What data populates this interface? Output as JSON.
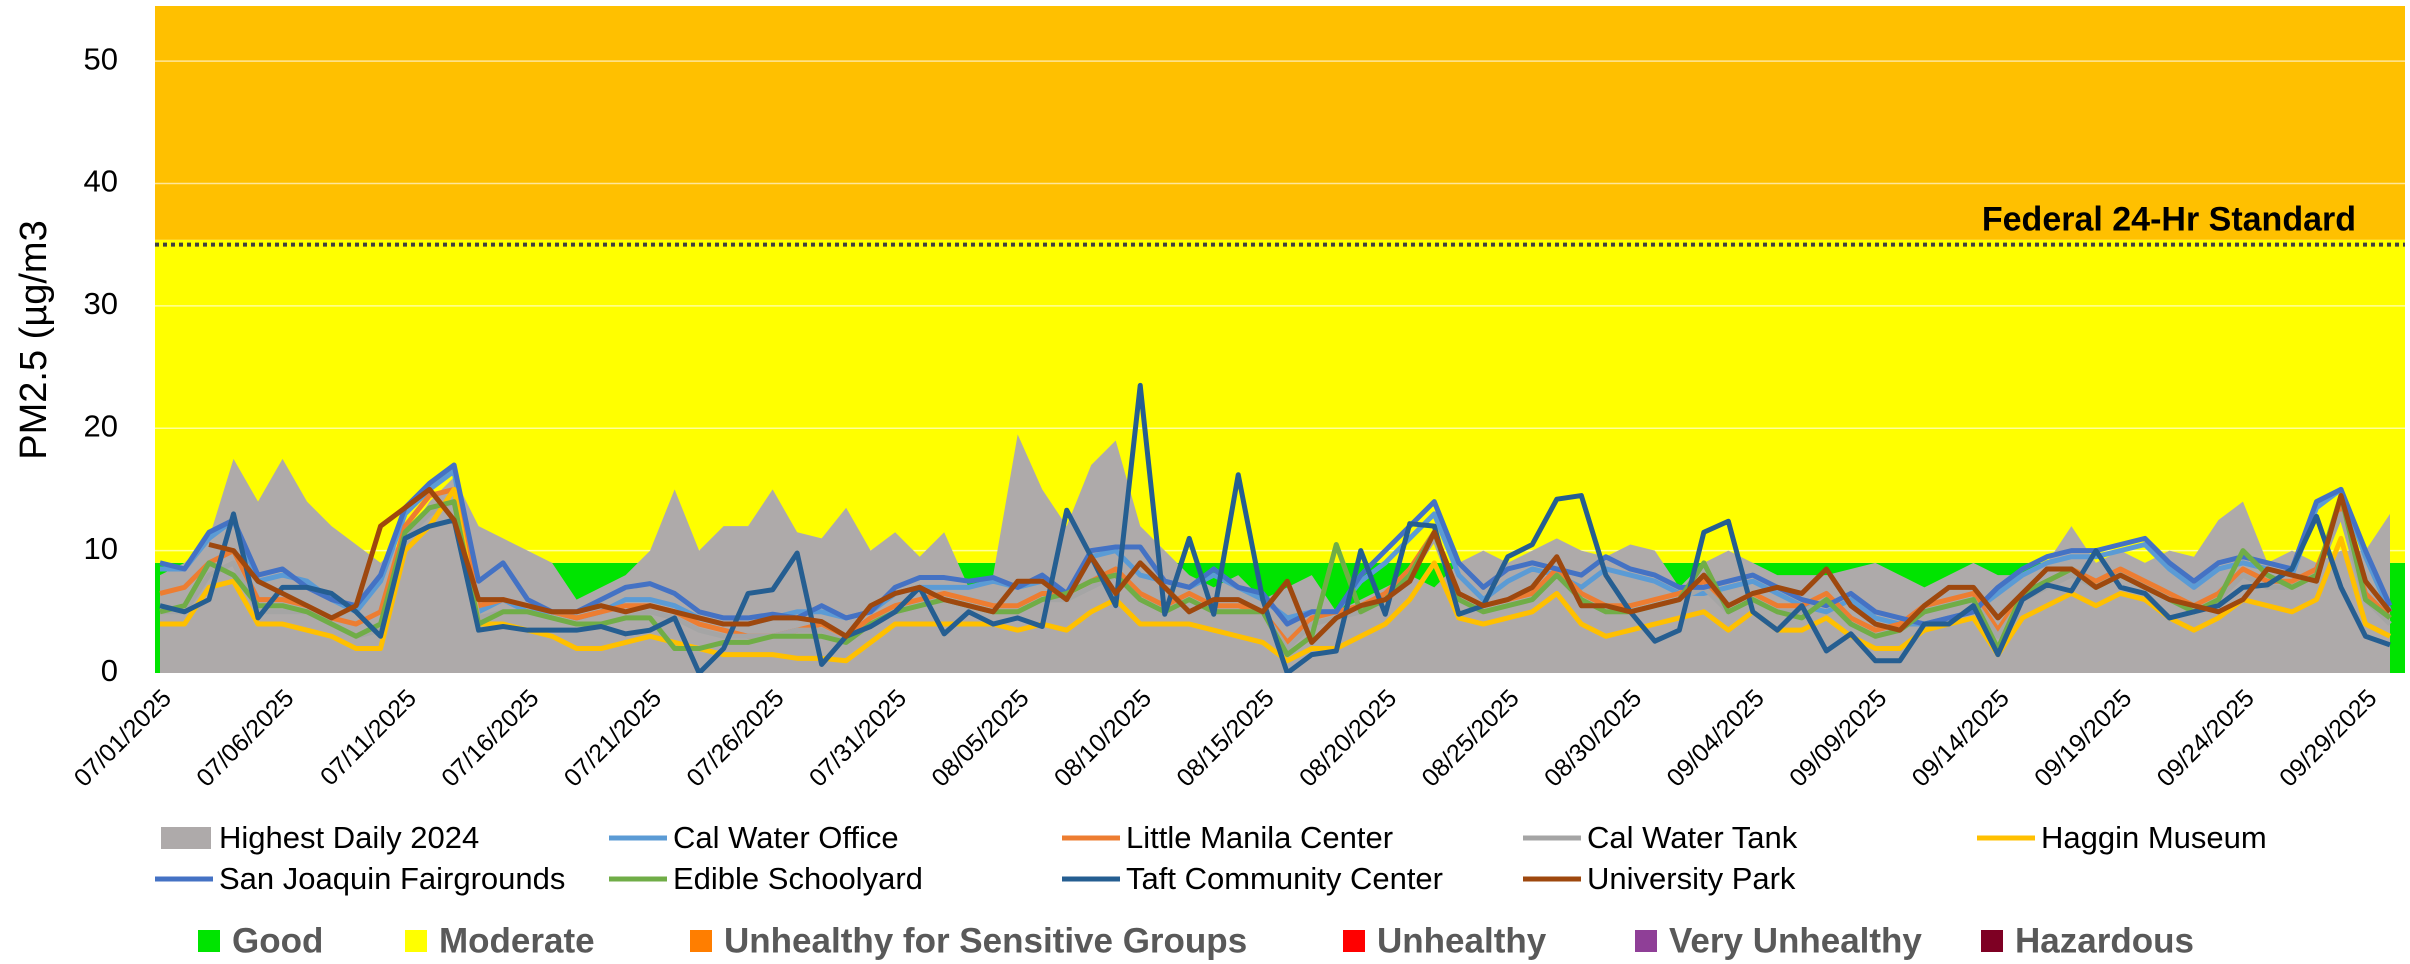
{
  "chart_data": {
    "type": "line",
    "ylabel": "PM2.5 (µg/m3",
    "ylim": [
      0,
      54.5
    ],
    "yticks": [
      0,
      10,
      20,
      30,
      40,
      50
    ],
    "grid": true,
    "standard": {
      "label": "Federal 24-Hr Standard",
      "value": 35
    },
    "aqi_categories": [
      {
        "name": "Good",
        "color": "#00e400",
        "range": [
          0,
          9
        ]
      },
      {
        "name": "Moderate",
        "color": "#ffff00",
        "range": [
          9,
          35.4
        ]
      },
      {
        "name": "Unhealthy for Sensitive Groups",
        "color": "#ff7e00",
        "fill": "#ffc000",
        "range": [
          35.4,
          55.4
        ]
      },
      {
        "name": "Unhealthy",
        "color": "#ff0000"
      },
      {
        "name": "Very Unhealthy",
        "color": "#8f3f97"
      },
      {
        "name": "Hazardous",
        "color": "#7e0023"
      }
    ],
    "categories": [
      "07/01/2025",
      null,
      null,
      null,
      null,
      "07/06/2025",
      null,
      null,
      null,
      null,
      "07/11/2025",
      null,
      null,
      null,
      null,
      "07/16/2025",
      null,
      null,
      null,
      null,
      "07/21/2025",
      null,
      null,
      null,
      null,
      "07/26/2025",
      null,
      null,
      null,
      null,
      "07/31/2025",
      null,
      null,
      null,
      null,
      "08/05/2025",
      null,
      null,
      null,
      null,
      "08/10/2025",
      null,
      null,
      null,
      null,
      "08/15/2025",
      null,
      null,
      null,
      null,
      "08/20/2025",
      null,
      null,
      null,
      null,
      "08/25/2025",
      null,
      null,
      null,
      null,
      "08/30/2025",
      null,
      null,
      null,
      null,
      "09/04/2025",
      null,
      null,
      null,
      null,
      "09/09/2025",
      null,
      null,
      null,
      null,
      "09/14/2025",
      null,
      null,
      null,
      null,
      "09/19/2025",
      null,
      null,
      null,
      null,
      "09/24/2025",
      null,
      null,
      null,
      null,
      "09/29/2025",
      null
    ],
    "series": [
      {
        "name": "Highest Daily 2024",
        "kind": "area",
        "color": "#aeaaaa",
        "values": [
          8,
          9,
          11,
          17.5,
          14,
          17.5,
          14,
          12,
          10.5,
          9,
          11,
          14,
          16,
          12,
          11,
          10,
          9,
          6,
          7,
          8,
          10,
          15,
          10,
          12,
          12,
          15,
          11.5,
          11,
          13.5,
          10,
          11.5,
          9.5,
          11.5,
          7,
          8,
          19.5,
          15,
          12,
          17,
          19,
          12,
          10,
          8,
          7,
          8,
          6,
          7,
          8,
          5,
          6,
          7,
          8,
          7,
          9,
          10,
          9,
          10,
          11,
          10,
          9.5,
          10.5,
          10,
          7,
          9,
          10,
          9,
          8,
          8,
          8,
          8.5,
          9,
          8,
          7,
          8,
          9,
          8,
          8,
          9,
          12,
          9,
          10,
          9,
          10,
          9.5,
          12.5,
          14,
          9,
          10,
          9,
          10,
          10,
          13
        ]
      },
      {
        "name": "Cal Water Office",
        "color": "#5b9bd5",
        "values": [
          8.5,
          8.5,
          11,
          12.5,
          7.5,
          8,
          7.5,
          6,
          5,
          7.5,
          13,
          15,
          16.5,
          5,
          6,
          5,
          5,
          4.5,
          5,
          6,
          6,
          5.5,
          4.5,
          4,
          4,
          4.5,
          5,
          5,
          4.5,
          5,
          6.5,
          7,
          7,
          7,
          7.5,
          7,
          7.5,
          6,
          9.5,
          10,
          8,
          7.5,
          7,
          8,
          7,
          6,
          4.5,
          5,
          5,
          7.5,
          9,
          11,
          13,
          8,
          6,
          7.5,
          8.5,
          8,
          7,
          8.5,
          8,
          7.5,
          6.5,
          6.5,
          7,
          7.5,
          6.5,
          5.5,
          5,
          6,
          4.5,
          4,
          4,
          4.5,
          5,
          6.5,
          8,
          9,
          9.5,
          9.5,
          10,
          10.5,
          8.5,
          7,
          8.5,
          9,
          8.5,
          8,
          13.5,
          15,
          9.5,
          5
        ]
      },
      {
        "name": "Little Manila Center",
        "color": "#ed7d31",
        "values": [
          6.5,
          7,
          9,
          10,
          6,
          6,
          5.5,
          4.5,
          4,
          5,
          12,
          14.5,
          15,
          5.5,
          6,
          5.5,
          5,
          4.5,
          5,
          5.5,
          5.5,
          5,
          4,
          3.5,
          3,
          3,
          3.5,
          4,
          3,
          4.5,
          5.5,
          6,
          6.5,
          6,
          5.5,
          5.5,
          6.5,
          6.5,
          7.5,
          8.5,
          6.5,
          5.5,
          6.5,
          5.5,
          5.5,
          5,
          2.5,
          4.5,
          5,
          5.5,
          6.5,
          8.5,
          11.5,
          6.5,
          5.5,
          6,
          6.5,
          8.5,
          6.5,
          5.5,
          5.5,
          6,
          6.5,
          7.5,
          5.5,
          6.5,
          5.5,
          5.5,
          6.5,
          4.5,
          3.5,
          4,
          5.5,
          6,
          6.5,
          3.5,
          6.5,
          7.5,
          8.5,
          7.5,
          8.5,
          7.5,
          6.5,
          5.5,
          6.5,
          8.5,
          7.5,
          7.5,
          8.5,
          13.5,
          6.5,
          4.5
        ]
      },
      {
        "name": "Cal Water Tank",
        "color": "#a5a5a5",
        "values": [
          5,
          5,
          8,
          9,
          5,
          5,
          5,
          4,
          3,
          3.5,
          11,
          13,
          14,
          4.5,
          5,
          5,
          4.5,
          4,
          4,
          4.5,
          5,
          4.5,
          3.5,
          3,
          3,
          3,
          3.5,
          3.5,
          2.5,
          4,
          5,
          5.5,
          6,
          5.5,
          5,
          5,
          6,
          6,
          7,
          8,
          6,
          5,
          6,
          5,
          5,
          5,
          2,
          4,
          4.5,
          5,
          6,
          8,
          11,
          6,
          5,
          5.5,
          6,
          8,
          6,
          5,
          5,
          5.5,
          6,
          7,
          5,
          6,
          5,
          5,
          6,
          4,
          3,
          3.5,
          5,
          5.5,
          6,
          3,
          6,
          7,
          8,
          7,
          8,
          7,
          6,
          5,
          6,
          8,
          7,
          7,
          8,
          13,
          6,
          4
        ]
      },
      {
        "name": "Haggin Museum",
        "color": "#ffc000",
        "values": [
          4,
          4,
          7,
          7.5,
          4,
          4,
          3.5,
          3,
          2,
          2,
          10,
          12,
          15,
          4,
          4,
          3.5,
          3,
          2,
          2,
          2.5,
          3,
          2.5,
          2,
          1.5,
          1.5,
          1.5,
          1.2,
          1.2,
          1,
          2.5,
          4,
          4,
          4,
          4,
          4,
          3.5,
          4,
          3.5,
          5,
          6,
          4,
          4,
          4,
          3.5,
          3,
          2.5,
          1,
          2,
          2,
          3,
          4,
          6,
          9,
          4.5,
          4,
          4.5,
          5,
          6.5,
          4,
          3,
          3.5,
          4,
          4.5,
          5,
          3.5,
          5,
          3.5,
          3.5,
          4.5,
          3,
          2,
          2,
          3.5,
          4,
          4.5,
          1.5,
          4.5,
          5.5,
          6.5,
          5.5,
          6.5,
          6,
          4.5,
          3.5,
          4.5,
          6,
          5.5,
          5,
          6,
          11,
          4,
          3
        ]
      },
      {
        "name": "San Joaquin Fairgrounds",
        "color": "#4472c4",
        "values": [
          9,
          8.5,
          11.5,
          12.5,
          8,
          8.5,
          7,
          6,
          5.5,
          8,
          13.5,
          15.5,
          17,
          7.5,
          9,
          6,
          5,
          5,
          6,
          7,
          7.3,
          6.5,
          5,
          4.5,
          4.5,
          4.8,
          4.5,
          5.5,
          4.5,
          5,
          7,
          7.8,
          7.8,
          7.5,
          7.8,
          7,
          8,
          6.5,
          10,
          10.3,
          10.3,
          7.5,
          7,
          8.5,
          7,
          6.5,
          4,
          5,
          5,
          8,
          10,
          12,
          14,
          9,
          7,
          8.5,
          9,
          8.5,
          8,
          9.5,
          8.5,
          8,
          7,
          7,
          7.5,
          8,
          7,
          6,
          5.5,
          6.5,
          5,
          4.5,
          4,
          4.5,
          5,
          7,
          8.5,
          9.5,
          10,
          10,
          10.5,
          11,
          9,
          7.5,
          9,
          9.5,
          9,
          8.5,
          14,
          15,
          10,
          5.5
        ]
      },
      {
        "name": "Edible Schoolyard",
        "color": "#70ad47",
        "values": [
          5,
          5.5,
          9,
          8,
          5.5,
          5.5,
          5,
          4,
          3,
          4,
          11.5,
          13.5,
          14,
          4,
          5,
          5,
          4.5,
          4,
          4,
          4.5,
          4.5,
          2,
          2,
          2.5,
          2.5,
          3,
          3,
          3,
          2.5,
          4,
          5,
          5.5,
          6,
          5.5,
          5,
          5,
          6,
          6.5,
          7.5,
          8,
          6,
          5,
          6,
          5,
          5,
          5,
          1.5,
          3,
          10.5,
          5,
          6,
          8,
          11.5,
          6,
          5,
          5.5,
          6,
          8,
          6,
          5,
          5,
          5.5,
          6,
          9,
          5,
          6,
          5,
          4.5,
          6,
          4,
          3,
          3.5,
          5,
          5.5,
          6,
          2,
          6.5,
          7.5,
          8.5,
          7,
          8,
          7,
          6,
          5,
          6,
          10,
          8,
          7,
          8,
          14.5,
          6,
          4.5
        ]
      },
      {
        "name": "Taft Community Center",
        "color": "#255e91",
        "values": [
          5.5,
          5,
          6,
          13,
          4.5,
          7,
          7,
          6.5,
          5,
          3,
          11,
          12,
          12.5,
          3.5,
          3.8,
          3.5,
          3.5,
          3.5,
          3.8,
          3.2,
          3.5,
          4.5,
          0,
          2,
          6.5,
          6.8,
          9.8,
          0.7,
          3,
          3.8,
          5,
          7,
          3.2,
          5,
          4,
          4.5,
          3.8,
          13.3,
          9.5,
          5.5,
          23.5,
          4.8,
          11,
          4.8,
          16.2,
          6,
          0,
          1.5,
          1.8,
          10,
          4.8,
          12.2,
          12,
          4.8,
          5.5,
          9.5,
          10.5,
          14.2,
          14.5,
          8,
          5,
          2.6,
          3.5,
          11.5,
          12.4,
          5,
          3.5,
          5.5,
          1.8,
          3.2,
          1,
          1,
          4,
          4,
          5.5,
          1.5,
          6,
          7.2,
          6.7,
          10,
          7,
          6.5,
          4.5,
          5,
          5.5,
          7,
          7.2,
          8.5,
          12.8,
          7,
          3,
          2.3
        ]
      },
      {
        "name": "University Park",
        "color": "#9e480e",
        "values": [
          null,
          null,
          10.5,
          10,
          7.5,
          6.5,
          5.5,
          4.5,
          5.5,
          12,
          13.5,
          15,
          12.5,
          6,
          6,
          5.5,
          5,
          5,
          5.5,
          5,
          5.5,
          5,
          4.5,
          4,
          4,
          4.5,
          4.5,
          4.2,
          3,
          5.5,
          6.5,
          7,
          6,
          5.5,
          5,
          7.5,
          7.5,
          6,
          9.5,
          6.5,
          9,
          7,
          5,
          6,
          6,
          5,
          7.5,
          2.5,
          4.5,
          5.5,
          6,
          7.5,
          11.5,
          6.5,
          5.5,
          6,
          7,
          9.5,
          5.5,
          5.5,
          5,
          5.5,
          6,
          8,
          5.5,
          6.5,
          7,
          6.5,
          8.5,
          5.5,
          4,
          3.5,
          5.5,
          7,
          7,
          4.5,
          6.5,
          8.5,
          8.5,
          7,
          8,
          7,
          6,
          5.5,
          5,
          6,
          8.5,
          8,
          7.5,
          14.5,
          7.5,
          5
        ]
      }
    ]
  }
}
